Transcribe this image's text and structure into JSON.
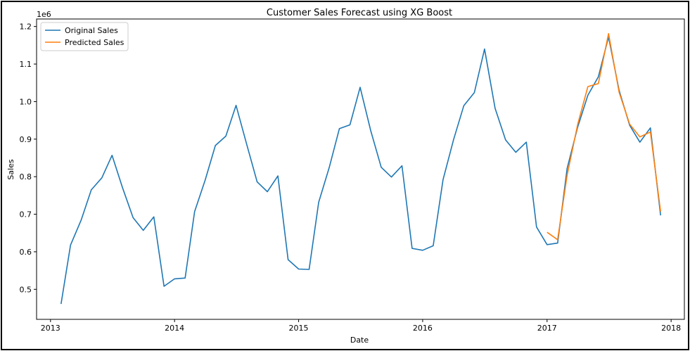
{
  "chart_data": {
    "type": "line",
    "title": "Customer Sales Forecast using XG Boost",
    "xlabel": "Date",
    "ylabel": "Sales",
    "y_offset_label": "1e6",
    "ylim": [
      0.42,
      1.22
    ],
    "xlim": [
      "2012-11-21",
      "2018-02-09"
    ],
    "x_ticks": [
      "2013",
      "2014",
      "2015",
      "2016",
      "2017",
      "2018"
    ],
    "y_ticks": [
      "0.5",
      "0.6",
      "0.7",
      "0.8",
      "0.9",
      "1.0",
      "1.1",
      "1.2"
    ],
    "legend_position": "top-left",
    "grid": false,
    "series": [
      {
        "name": "Original Sales",
        "color": "#1f77b4",
        "points": [
          [
            "2013-02-01",
            0.461
          ],
          [
            "2013-03-01",
            0.618
          ],
          [
            "2013-04-01",
            0.684
          ],
          [
            "2013-05-01",
            0.765
          ],
          [
            "2013-06-01",
            0.797
          ],
          [
            "2013-07-01",
            0.857
          ],
          [
            "2013-08-01",
            0.77
          ],
          [
            "2013-09-01",
            0.691
          ],
          [
            "2013-10-01",
            0.657
          ],
          [
            "2013-11-01",
            0.693
          ],
          [
            "2013-12-01",
            0.508
          ],
          [
            "2014-01-01",
            0.528
          ],
          [
            "2014-02-01",
            0.53
          ],
          [
            "2014-03-01",
            0.707
          ],
          [
            "2014-04-01",
            0.791
          ],
          [
            "2014-05-01",
            0.883
          ],
          [
            "2014-06-01",
            0.908
          ],
          [
            "2014-07-01",
            0.99
          ],
          [
            "2014-08-01",
            0.887
          ],
          [
            "2014-09-01",
            0.786
          ],
          [
            "2014-10-01",
            0.76
          ],
          [
            "2014-11-01",
            0.802
          ],
          [
            "2014-12-01",
            0.579
          ],
          [
            "2015-01-01",
            0.554
          ],
          [
            "2015-02-01",
            0.553
          ],
          [
            "2015-03-01",
            0.732
          ],
          [
            "2015-04-01",
            0.824
          ],
          [
            "2015-05-01",
            0.928
          ],
          [
            "2015-06-01",
            0.938
          ],
          [
            "2015-07-01",
            1.038
          ],
          [
            "2015-08-01",
            0.923
          ],
          [
            "2015-09-01",
            0.825
          ],
          [
            "2015-10-01",
            0.799
          ],
          [
            "2015-11-01",
            0.829
          ],
          [
            "2015-12-01",
            0.609
          ],
          [
            "2016-01-01",
            0.604
          ],
          [
            "2016-02-01",
            0.616
          ],
          [
            "2016-03-01",
            0.792
          ],
          [
            "2016-04-01",
            0.899
          ],
          [
            "2016-05-01",
            0.989
          ],
          [
            "2016-06-01",
            1.024
          ],
          [
            "2016-07-01",
            1.14
          ],
          [
            "2016-08-01",
            0.982
          ],
          [
            "2016-09-01",
            0.898
          ],
          [
            "2016-10-01",
            0.865
          ],
          [
            "2016-11-01",
            0.892
          ],
          [
            "2016-12-01",
            0.666
          ],
          [
            "2017-01-01",
            0.619
          ],
          [
            "2017-02-01",
            0.623
          ],
          [
            "2017-03-01",
            0.822
          ],
          [
            "2017-04-01",
            0.932
          ],
          [
            "2017-05-01",
            1.017
          ],
          [
            "2017-06-01",
            1.066
          ],
          [
            "2017-07-01",
            1.172
          ],
          [
            "2017-08-01",
            1.03
          ],
          [
            "2017-09-01",
            0.937
          ],
          [
            "2017-10-01",
            0.892
          ],
          [
            "2017-11-01",
            0.93
          ],
          [
            "2017-12-01",
            0.697
          ]
        ]
      },
      {
        "name": "Predicted Sales",
        "color": "#ff7f0e",
        "points": [
          [
            "2017-01-01",
            0.652
          ],
          [
            "2017-02-01",
            0.632
          ],
          [
            "2017-03-01",
            0.804
          ],
          [
            "2017-04-01",
            0.939
          ],
          [
            "2017-05-01",
            1.04
          ],
          [
            "2017-06-01",
            1.048
          ],
          [
            "2017-07-01",
            1.181
          ],
          [
            "2017-08-01",
            1.025
          ],
          [
            "2017-09-01",
            0.94
          ],
          [
            "2017-10-01",
            0.906
          ],
          [
            "2017-11-01",
            0.919
          ],
          [
            "2017-12-01",
            0.707
          ]
        ]
      }
    ]
  }
}
